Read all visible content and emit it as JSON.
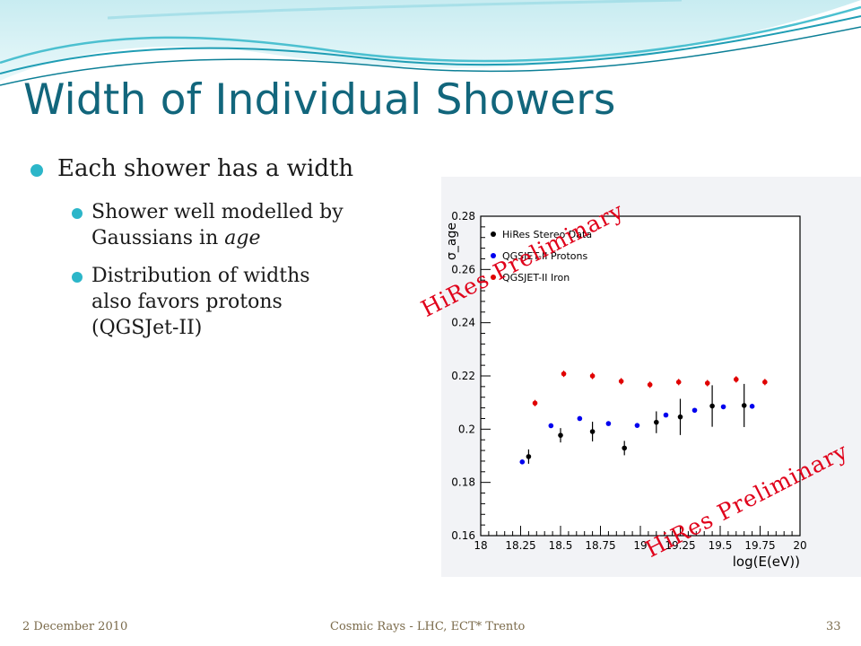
{
  "slide": {
    "title": "Width of Individual Showers",
    "bullets": {
      "main": "Each shower has a width",
      "sub1_line1": "Shower well modelled by",
      "sub1_line2_pre": "Gaussians in ",
      "sub1_line2_em": "age",
      "sub2_line1": "Distribution of widths",
      "sub2_line2": "also favors protons",
      "sub2_line3": "(QGSJet-II)"
    },
    "stamp_text": "HiRes Preliminary",
    "footer": {
      "date": "2 December 2010",
      "center": "Cosmic Rays - LHC, ECT* Trento",
      "page": "33"
    }
  },
  "colors": {
    "title": "#12667c",
    "bullet_dot": "#2cb6c9",
    "stamp": "#e0001a",
    "data": "#000000",
    "protons": "#0000ee",
    "iron": "#e00000"
  },
  "chart_data": {
    "type": "scatter",
    "xlabel": "log(E(eV))",
    "ylabel": "σ_age",
    "xlim": [
      18,
      20
    ],
    "ylim": [
      0.16,
      0.28
    ],
    "xticks": [
      "18",
      "18.25",
      "18.5",
      "18.75",
      "19",
      "19.25",
      "19.5",
      "19.75",
      "20"
    ],
    "yticks": [
      "0.16",
      "0.18",
      "0.2",
      "0.22",
      "0.24",
      "0.26",
      "0.28"
    ],
    "legend_position": "top-left",
    "series": [
      {
        "name": "HiRes Stereo Data",
        "color": "#000000",
        "x": [
          18.3,
          18.5,
          18.7,
          18.9,
          19.1,
          19.25,
          19.45,
          19.65
        ],
        "y": [
          0.1897,
          0.1977,
          0.1991,
          0.1929,
          0.2026,
          0.2046,
          0.2087,
          0.2089
        ],
        "err": [
          0.0027,
          0.0027,
          0.0037,
          0.0027,
          0.0041,
          0.0068,
          0.0078,
          0.0081
        ]
      },
      {
        "name": "QGSJET-II Protons",
        "color": "#0000ee",
        "x": [
          18.26,
          18.44,
          18.62,
          18.8,
          18.98,
          19.16,
          19.34,
          19.52,
          19.7
        ],
        "y": [
          0.1877,
          0.2013,
          0.204,
          0.2021,
          0.2014,
          0.2053,
          0.2071,
          0.2084,
          0.2086
        ],
        "err": [
          0.0006,
          0.0006,
          0.0006,
          0.0006,
          0.0006,
          0.0006,
          0.0006,
          0.0006,
          0.0006
        ]
      },
      {
        "name": "QGSJET-II Iron",
        "color": "#e00000",
        "x": [
          18.34,
          18.52,
          18.7,
          18.88,
          19.06,
          19.24,
          19.42,
          19.6,
          19.78
        ],
        "y": [
          0.2098,
          0.2208,
          0.22,
          0.218,
          0.2167,
          0.2177,
          0.2173,
          0.2187,
          0.2177
        ],
        "err": [
          0.0012,
          0.0012,
          0.0012,
          0.0012,
          0.0012,
          0.0012,
          0.0012,
          0.0012,
          0.0012
        ]
      }
    ]
  }
}
